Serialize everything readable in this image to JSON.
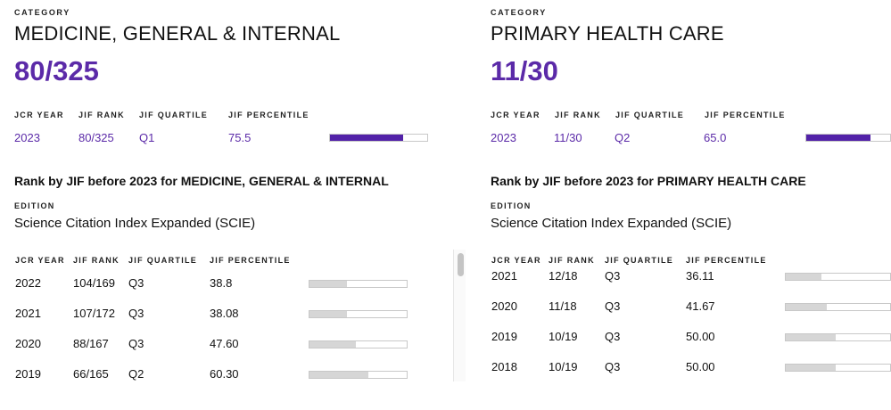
{
  "left": {
    "category_label": "CATEGORY",
    "category_name": "MEDICINE, GENERAL & INTERNAL",
    "rank": "80/325",
    "headers": {
      "year": "JCR YEAR",
      "rank": "JIF RANK",
      "quartile": "JIF QUARTILE",
      "percentile": "JIF PERCENTILE"
    },
    "current": {
      "year": "2023",
      "rank": "80/325",
      "quartile": "Q1",
      "percentile": "75.5",
      "percentile_value": 75.5
    },
    "history_title": "Rank by JIF before 2023 for MEDICINE, GENERAL & INTERNAL",
    "edition_label": "EDITION",
    "edition": "Science Citation Index Expanded (SCIE)",
    "history": [
      {
        "year": "2022",
        "rank": "104/169",
        "quartile": "Q3",
        "percentile": "38.8",
        "percentile_value": 38.8
      },
      {
        "year": "2021",
        "rank": "107/172",
        "quartile": "Q3",
        "percentile": "38.08",
        "percentile_value": 38.08
      },
      {
        "year": "2020",
        "rank": "88/167",
        "quartile": "Q3",
        "percentile": "47.60",
        "percentile_value": 47.6
      },
      {
        "year": "2019",
        "rank": "66/165",
        "quartile": "Q2",
        "percentile": "60.30",
        "percentile_value": 60.3
      }
    ]
  },
  "right": {
    "category_label": "CATEGORY",
    "category_name": "PRIMARY HEALTH CARE",
    "rank": "11/30",
    "headers": {
      "year": "JCR YEAR",
      "rank": "JIF RANK",
      "quartile": "JIF QUARTILE",
      "percentile": "JIF PERCENTILE"
    },
    "current": {
      "year": "2023",
      "rank": "11/30",
      "quartile": "Q2",
      "percentile": "65.0",
      "percentile_value": 65.0
    },
    "history_title": "Rank by JIF before 2023 for PRIMARY HEALTH CARE",
    "edition_label": "EDITION",
    "edition": "Science Citation Index Expanded (SCIE)",
    "history": [
      {
        "year": "2021",
        "rank": "12/18",
        "quartile": "Q3",
        "percentile": "36.11",
        "percentile_value": 36.11
      },
      {
        "year": "2020",
        "rank": "11/18",
        "quartile": "Q3",
        "percentile": "41.67",
        "percentile_value": 41.67
      },
      {
        "year": "2019",
        "rank": "10/19",
        "quartile": "Q3",
        "percentile": "50.00",
        "percentile_value": 50.0
      },
      {
        "year": "2018",
        "rank": "10/19",
        "quartile": "Q3",
        "percentile": "50.00",
        "percentile_value": 50.0
      }
    ]
  },
  "colors": {
    "accent": "#5b2aa8",
    "bar_fill_current": "#5222a8",
    "bar_fill_history": "#d6d6d6",
    "bar_border": "#c8c8c8"
  }
}
